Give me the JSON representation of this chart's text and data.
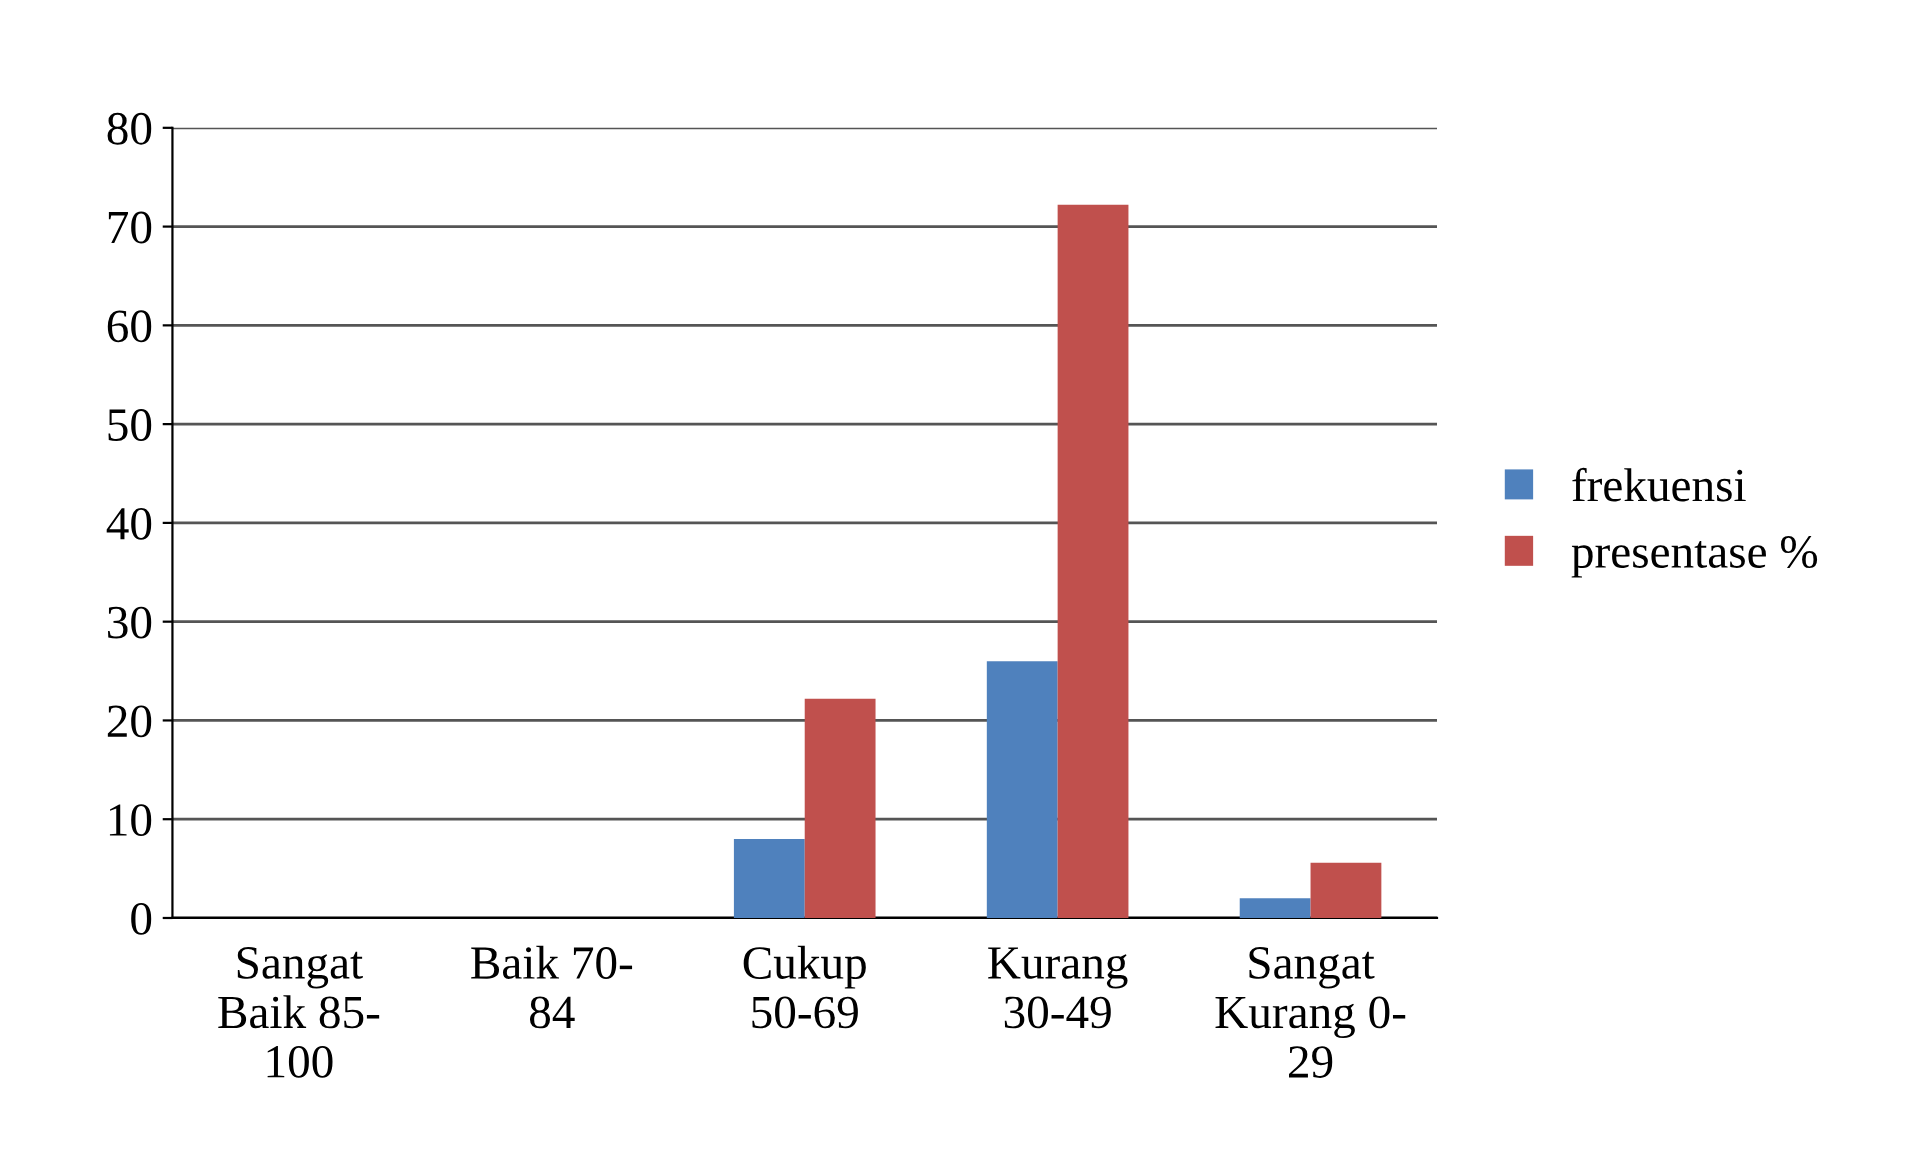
{
  "chart_data": {
    "type": "bar",
    "categories": [
      "Sangat\nBaik 85-\n100",
      "Baik 70-\n84",
      "Cukup\n50-69",
      "Kurang\n30-49",
      "Sangat\nKurang 0-\n29"
    ],
    "series": [
      {
        "name": "frekuensi",
        "color": "#4f81bd",
        "values": [
          0,
          0,
          8,
          26,
          2
        ]
      },
      {
        "name": "presentase %",
        "color": "#c0504d",
        "values": [
          0,
          0,
          22.2,
          72.2,
          5.6
        ]
      }
    ],
    "ylim": [
      0,
      80
    ],
    "yticks": [
      0,
      10,
      20,
      30,
      40,
      50,
      60,
      70,
      80
    ],
    "grid": "y",
    "legend": "right"
  }
}
